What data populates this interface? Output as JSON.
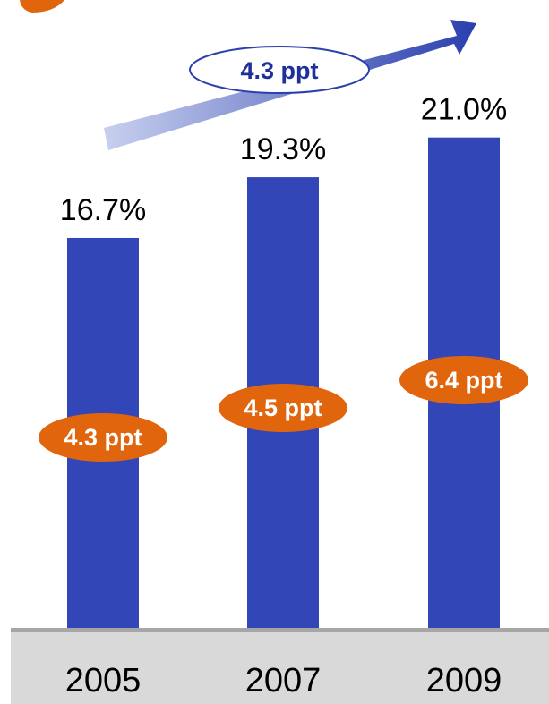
{
  "colors": {
    "bar": "#3346b8",
    "badge": "#e0650d",
    "baseline_band": "#d9d9d9",
    "baseline_top": "#a6a6a6",
    "arrow_start": "#c8d0ee",
    "arrow_end": "#2a3fae",
    "growth_text": "#1f2f9c"
  },
  "growth_annotation": {
    "label": "4.3 ppt"
  },
  "chart_data": {
    "type": "bar",
    "categories": [
      "2005",
      "2007",
      "2009"
    ],
    "values": [
      16.7,
      19.3,
      21.0
    ],
    "value_labels": [
      "16.7%",
      "19.3%",
      "21.0%"
    ],
    "badges": [
      "4.3 ppt",
      "4.5 ppt",
      "6.4 ppt"
    ],
    "ylim": [
      0,
      23.5
    ],
    "grid": false
  }
}
